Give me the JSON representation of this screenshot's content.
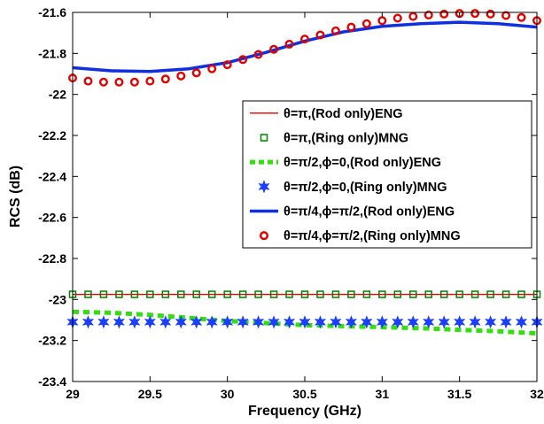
{
  "chart_data": {
    "type": "line",
    "title": "",
    "xlabel": "Frequency (GHz)",
    "ylabel": "RCS (dB)",
    "xlim": [
      29,
      32
    ],
    "ylim": [
      -23.4,
      -21.6
    ],
    "xticks": [
      "29",
      "29.5",
      "30",
      "30.5",
      "31",
      "31.5",
      "32"
    ],
    "yticks": [
      "-21.6",
      "-21.8",
      "-22",
      "-22.2",
      "-22.4",
      "-22.6",
      "-22.8",
      "-23",
      "-23.2",
      "-23.4"
    ],
    "grid": false,
    "legend_position": "right",
    "series": [
      {
        "name": "θ=π,(Rod only)ENG",
        "color": "#e00000",
        "style": "solid-line",
        "x": [
          29,
          32
        ],
        "y": [
          -22.975,
          -22.975
        ]
      },
      {
        "name": "θ=π,(Ring only)MNG",
        "color": "#008000",
        "style": "square-markers",
        "x": [
          29,
          29.1,
          29.2,
          29.3,
          29.4,
          29.5,
          29.6,
          29.7,
          29.8,
          29.9,
          30,
          30.1,
          30.2,
          30.3,
          30.4,
          30.5,
          30.6,
          30.7,
          30.8,
          30.9,
          31,
          31.1,
          31.2,
          31.3,
          31.4,
          31.5,
          31.6,
          31.7,
          31.8,
          31.9,
          32
        ],
        "y": [
          -22.975,
          -22.975,
          -22.975,
          -22.975,
          -22.975,
          -22.975,
          -22.975,
          -22.975,
          -22.975,
          -22.975,
          -22.975,
          -22.975,
          -22.975,
          -22.975,
          -22.975,
          -22.975,
          -22.975,
          -22.975,
          -22.975,
          -22.975,
          -22.975,
          -22.975,
          -22.975,
          -22.975,
          -22.975,
          -22.975,
          -22.975,
          -22.975,
          -22.975,
          -22.975,
          -22.975
        ]
      },
      {
        "name": "θ=π/2,ϕ=0,(Rod only)ENG",
        "color": "#33dd11",
        "style": "dashed-line",
        "x": [
          29,
          29.25,
          29.5,
          29.75,
          30,
          30.25,
          30.5,
          30.75,
          31,
          31.25,
          31.5,
          31.75,
          32
        ],
        "y": [
          -23.06,
          -23.065,
          -23.075,
          -23.09,
          -23.105,
          -23.115,
          -23.125,
          -23.13,
          -23.135,
          -23.14,
          -23.148,
          -23.155,
          -23.165
        ]
      },
      {
        "name": "θ=π/2,ϕ=0,(Ring only)MNG",
        "color": "#1a3fff",
        "style": "star-markers",
        "x": [
          29,
          29.1,
          29.2,
          29.3,
          29.4,
          29.5,
          29.6,
          29.7,
          29.8,
          29.9,
          30,
          30.1,
          30.2,
          30.3,
          30.4,
          30.5,
          30.6,
          30.7,
          30.8,
          30.9,
          31,
          31.1,
          31.2,
          31.3,
          31.4,
          31.5,
          31.6,
          31.7,
          31.8,
          31.9,
          32
        ],
        "y": [
          -23.11,
          -23.11,
          -23.11,
          -23.11,
          -23.11,
          -23.11,
          -23.11,
          -23.11,
          -23.11,
          -23.11,
          -23.11,
          -23.11,
          -23.11,
          -23.11,
          -23.11,
          -23.11,
          -23.11,
          -23.11,
          -23.11,
          -23.11,
          -23.11,
          -23.11,
          -23.11,
          -23.11,
          -23.11,
          -23.11,
          -23.11,
          -23.11,
          -23.11,
          -23.11,
          -23.11
        ]
      },
      {
        "name": "θ=π/4,ϕ=π/2,(Rod only)ENG",
        "color": "#1030e0",
        "style": "thick-line",
        "x": [
          29,
          29.25,
          29.5,
          29.75,
          30,
          30.25,
          30.5,
          30.75,
          31,
          31.25,
          31.5,
          31.75,
          32
        ],
        "y": [
          -21.87,
          -21.885,
          -21.888,
          -21.875,
          -21.845,
          -21.795,
          -21.74,
          -21.695,
          -21.668,
          -21.655,
          -21.648,
          -21.655,
          -21.672
        ]
      },
      {
        "name": "θ=π/4,ϕ=π/2,(Ring only)MNG",
        "color": "#e00000",
        "style": "circle-markers",
        "x": [
          29,
          29.1,
          29.2,
          29.3,
          29.4,
          29.5,
          29.6,
          29.7,
          29.8,
          29.9,
          30,
          30.1,
          30.2,
          30.3,
          30.4,
          30.5,
          30.6,
          30.7,
          30.8,
          30.9,
          31,
          31.1,
          31.2,
          31.3,
          31.4,
          31.5,
          31.6,
          31.7,
          31.8,
          31.9,
          32
        ],
        "y": [
          -21.92,
          -21.935,
          -21.94,
          -21.94,
          -21.94,
          -21.935,
          -21.925,
          -21.91,
          -21.895,
          -21.875,
          -21.855,
          -21.83,
          -21.805,
          -21.78,
          -21.755,
          -21.73,
          -21.71,
          -21.69,
          -21.672,
          -21.655,
          -21.64,
          -21.628,
          -21.62,
          -21.613,
          -21.608,
          -21.605,
          -21.605,
          -21.608,
          -21.615,
          -21.625,
          -21.64
        ]
      }
    ]
  }
}
